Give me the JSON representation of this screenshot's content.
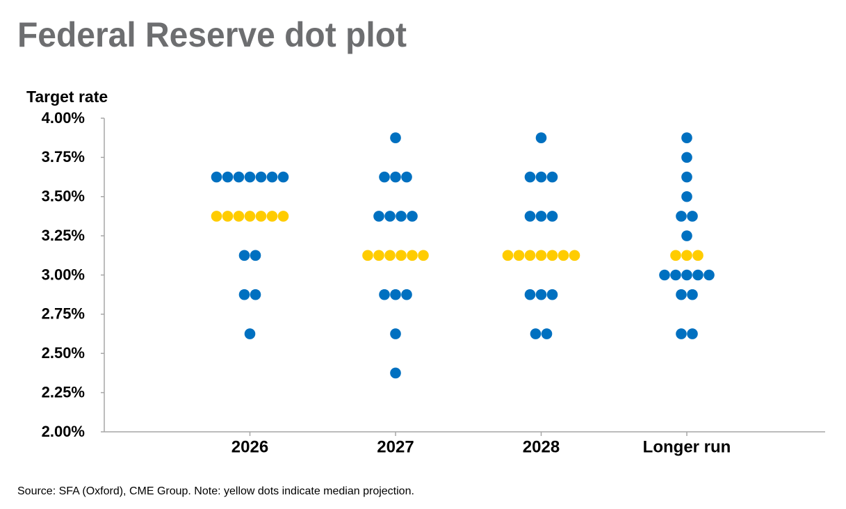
{
  "chart_data": {
    "type": "dot",
    "title": "Federal Reserve dot plot",
    "y_label": "Target rate",
    "note": "Source: SFA (Oxford), CME Group. Note: yellow dots indicate median projection.",
    "categories": [
      "2026",
      "2027",
      "2028",
      "Longer run"
    ],
    "rates": [
      [
        3.625,
        3.375,
        3.125,
        2.875,
        2.625
      ],
      [
        3.875,
        3.625,
        3.375,
        3.125,
        2.875,
        2.625,
        2.375
      ],
      [
        3.875,
        3.625,
        3.375,
        3.125,
        2.875,
        2.625
      ],
      [
        3.875,
        3.75,
        3.625,
        3.5,
        3.375,
        3.25,
        3.125,
        3.0,
        2.875,
        2.625
      ]
    ],
    "counts": [
      [
        7,
        7,
        2,
        2,
        1
      ],
      [
        1,
        3,
        4,
        6,
        3,
        1,
        1
      ],
      [
        1,
        3,
        3,
        7,
        3,
        2
      ],
      [
        1,
        1,
        1,
        1,
        2,
        1,
        3,
        5,
        2,
        2
      ]
    ],
    "medians": [
      3.375,
      3.125,
      3.125,
      3.125
    ],
    "color": "#0070c0",
    "median_color": "#ffcc00",
    "ylim": [
      2,
      4
    ],
    "yticks": [
      {
        "value": 2,
        "label": "2.00%"
      },
      {
        "value": 2.25,
        "label": "2.25%"
      },
      {
        "value": 2.5,
        "label": "2.50%"
      },
      {
        "value": 2.75,
        "label": "2.75%"
      },
      {
        "value": 3,
        "label": "3.00%"
      },
      {
        "value": 3.25,
        "label": "3.25%"
      },
      {
        "value": 3.5,
        "label": "3.50%"
      },
      {
        "value": 3.75,
        "label": "3.75%"
      },
      {
        "value": 4,
        "label": "4.00%"
      }
    ]
  }
}
